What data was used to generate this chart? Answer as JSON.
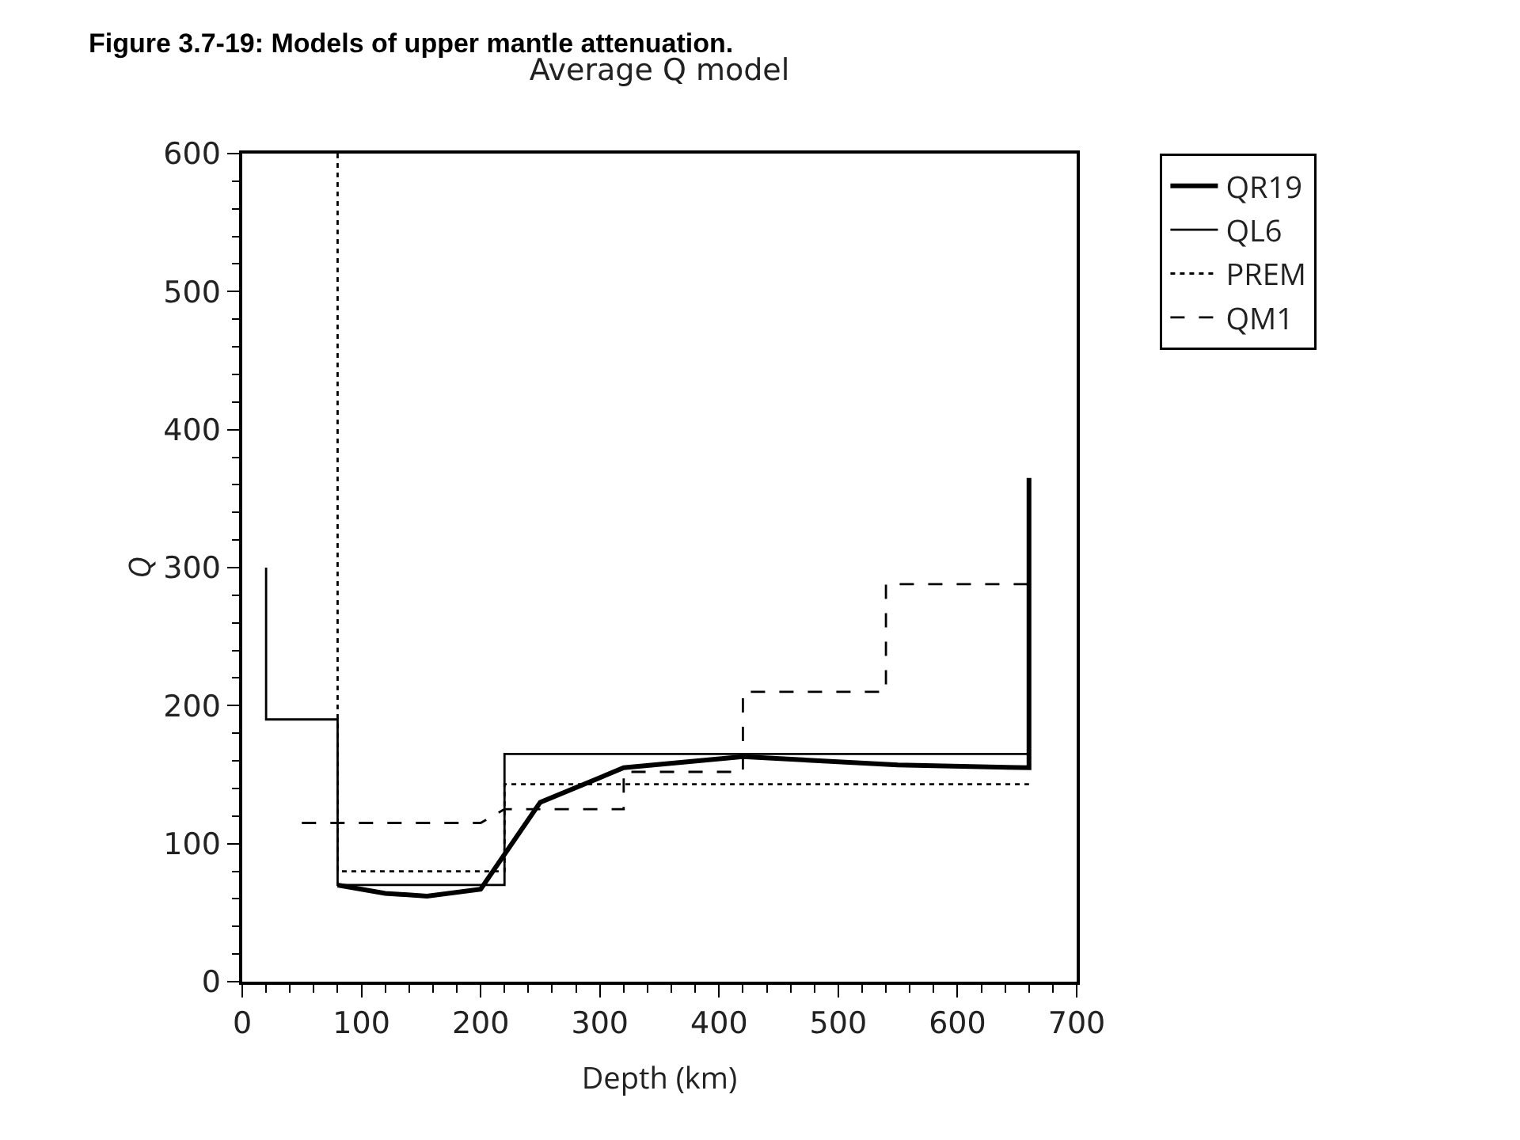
{
  "chart_data": {
    "type": "line",
    "title": "Average Q model",
    "xlabel": "Depth (km)",
    "ylabel": "Q",
    "annotations": [
      "Figure 3.7-19: Models of upper mantle attenuation."
    ],
    "xlim": [
      0,
      700
    ],
    "xticks": [
      0,
      100,
      200,
      300,
      400,
      500,
      600,
      700
    ],
    "ylim": [
      0,
      600
    ],
    "yticks": [
      0,
      100,
      200,
      300,
      400,
      500,
      600
    ],
    "grid": false,
    "legend": "top right",
    "marker": "none",
    "series": [
      {
        "name": "QR19",
        "color": "#000000",
        "line_style": "solid",
        "x": [
          80,
          120,
          155,
          200,
          250,
          320,
          420,
          550,
          660,
          660
        ],
        "values": [
          70,
          64,
          62,
          67,
          130,
          155,
          163,
          157,
          155,
          365
        ]
      },
      {
        "name": "QL6",
        "color": "#000000",
        "line_style": "solid",
        "x": [
          20,
          20,
          80,
          80,
          220,
          220,
          660,
          660
        ],
        "values": [
          300,
          190,
          190,
          70,
          70,
          165,
          165,
          155
        ]
      },
      {
        "name": "PREM",
        "color": "#000000",
        "line_style": "dotted",
        "x": [
          80,
          80,
          220,
          220,
          660
        ],
        "values": [
          600,
          80,
          80,
          143,
          143
        ]
      },
      {
        "name": "QM1",
        "color": "#000000",
        "line_style": "dashed",
        "x": [
          50,
          200,
          220,
          320,
          320,
          420,
          420,
          540,
          540,
          660
        ],
        "values": [
          115,
          115,
          125,
          125,
          152,
          152,
          210,
          210,
          288,
          288
        ]
      }
    ]
  }
}
